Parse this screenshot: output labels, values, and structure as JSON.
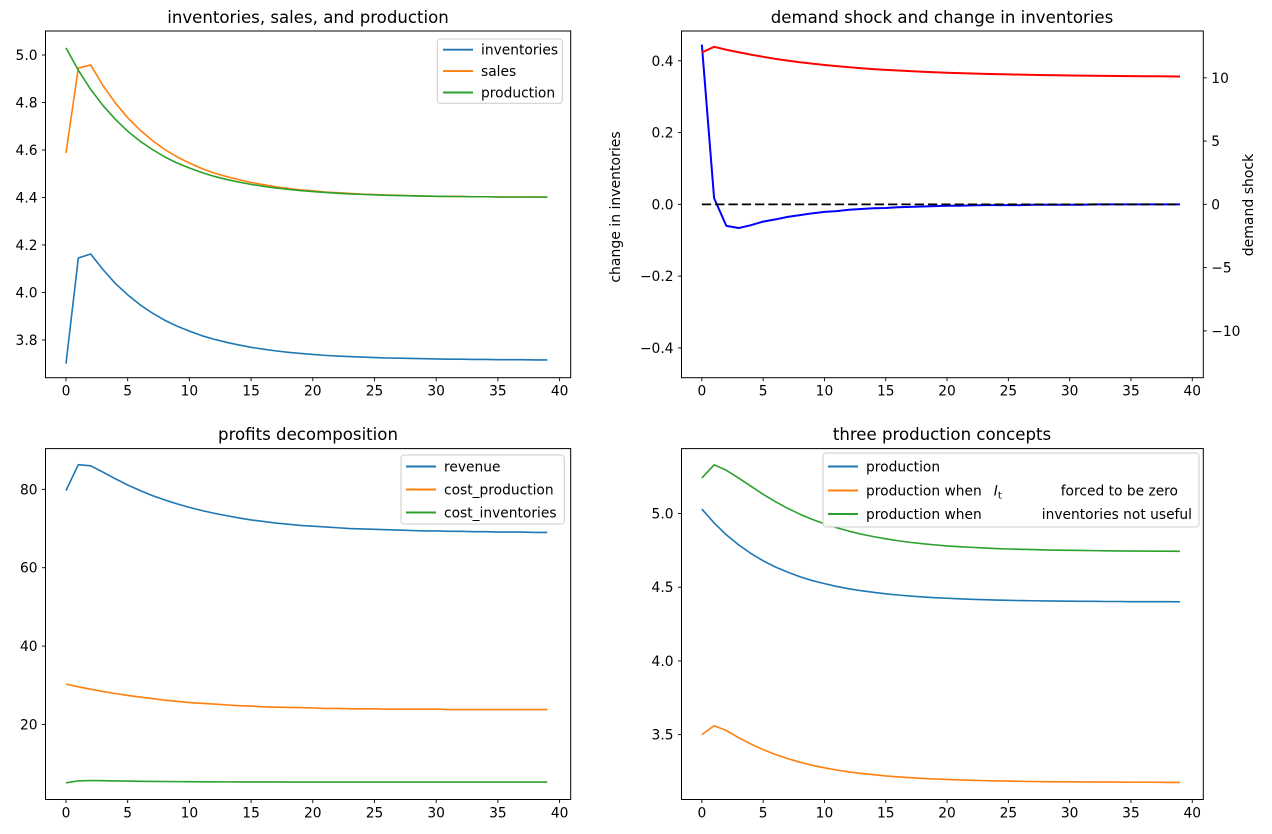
{
  "figure": {
    "background": "#ffffff",
    "colors": {
      "tab_blue": "#1f77b4",
      "tab_orange": "#ff7f0e",
      "tab_green": "#2ca02c",
      "pure_blue": "#0000ff",
      "pure_red": "#ff0000",
      "black": "#000000",
      "legend_edge": "#cccccc"
    }
  },
  "chart_data": [
    {
      "id": "inventories-sales-production",
      "type": "line",
      "title": "inventories, sales, and production",
      "xlim": [
        -1.66,
        40.9
      ],
      "xticks": [
        0,
        5,
        10,
        15,
        20,
        25,
        30,
        35,
        40
      ],
      "xticklabels": [
        "0",
        "5",
        "10",
        "15",
        "20",
        "25",
        "30",
        "35",
        "40"
      ],
      "ylim": [
        3.641,
        5.101
      ],
      "yticks": [
        3.8,
        4.0,
        4.2,
        4.4,
        4.6,
        4.8,
        5.0
      ],
      "yticklabels": [
        "3.8",
        "4.0",
        "4.2",
        "4.4",
        "4.6",
        "4.8",
        "5.0"
      ],
      "grid": false,
      "legend": {
        "position": "upper right",
        "items": [
          {
            "label": "inventories",
            "color": "#1f77b4"
          },
          {
            "label": "sales",
            "color": "#ff7f0e"
          },
          {
            "label": "production",
            "color": "#2ca02c"
          }
        ]
      },
      "series": [
        {
          "name": "inventories",
          "color": "#1f77b4",
          "width": 1.6,
          "values": [
            3.7,
            4.145,
            4.162,
            4.096,
            4.038,
            3.99,
            3.948,
            3.913,
            3.883,
            3.858,
            3.837,
            3.818,
            3.803,
            3.79,
            3.779,
            3.769,
            3.761,
            3.754,
            3.748,
            3.743,
            3.739,
            3.735,
            3.732,
            3.73,
            3.728,
            3.726,
            3.724,
            3.723,
            3.722,
            3.721,
            3.72,
            3.719,
            3.719,
            3.718,
            3.718,
            3.717,
            3.717,
            3.717,
            3.716,
            3.716
          ]
        },
        {
          "name": "sales",
          "color": "#ff7f0e",
          "width": 1.6,
          "values": [
            4.587,
            4.945,
            4.958,
            4.871,
            4.798,
            4.736,
            4.684,
            4.64,
            4.602,
            4.571,
            4.545,
            4.522,
            4.503,
            4.488,
            4.475,
            4.463,
            4.454,
            4.445,
            4.438,
            4.432,
            4.428,
            4.423,
            4.42,
            4.417,
            4.414,
            4.412,
            4.41,
            4.409,
            4.407,
            4.406,
            4.405,
            4.405,
            4.404,
            4.403,
            4.403,
            4.402,
            4.402,
            4.402,
            4.402,
            4.401
          ]
        },
        {
          "name": "production",
          "color": "#2ca02c",
          "width": 1.6,
          "values": [
            5.03,
            4.936,
            4.855,
            4.787,
            4.729,
            4.679,
            4.637,
            4.602,
            4.571,
            4.545,
            4.524,
            4.505,
            4.489,
            4.476,
            4.465,
            4.455,
            4.447,
            4.44,
            4.434,
            4.429,
            4.425,
            4.421,
            4.418,
            4.415,
            4.413,
            4.411,
            4.409,
            4.408,
            4.407,
            4.406,
            4.405,
            4.404,
            4.404,
            4.403,
            4.403,
            4.402,
            4.402,
            4.402,
            4.402,
            4.401
          ]
        }
      ]
    },
    {
      "id": "demand-shock-and-change-in-inventories",
      "type": "line",
      "title": "demand shock and change in inventories",
      "ylabel_left": "change in inventories",
      "ylabel_left_color": "#0000ff",
      "ylabel_right": "demand shock",
      "ylabel_right_color": "#ff0000",
      "xlim": [
        -1.66,
        40.9
      ],
      "xticks": [
        0,
        5,
        10,
        15,
        20,
        25,
        30,
        35,
        40
      ],
      "xticklabels": [
        "0",
        "5",
        "10",
        "15",
        "20",
        "25",
        "30",
        "35",
        "40"
      ],
      "ylim": [
        -0.483,
        0.483
      ],
      "yticks": [
        -0.4,
        -0.2,
        0.0,
        0.2,
        0.4
      ],
      "yticklabels": [
        "−0.4",
        "−0.2",
        "0.0",
        "0.2",
        "0.4"
      ],
      "y2lim": [
        -13.7,
        13.7
      ],
      "y2ticks": [
        -10,
        -5,
        0,
        5,
        10
      ],
      "y2ticklabels": [
        "−10",
        "−5",
        "0",
        "5",
        "10"
      ],
      "grid": false,
      "series": [
        {
          "name": "change in inventories",
          "color": "#0000ff",
          "width": 2,
          "values": [
            0.445,
            0.017,
            -0.06,
            -0.066,
            -0.058,
            -0.048,
            -0.042,
            -0.035,
            -0.03,
            -0.025,
            -0.021,
            -0.019,
            -0.015,
            -0.013,
            -0.011,
            -0.01,
            -0.008,
            -0.007,
            -0.006,
            -0.005,
            -0.004,
            -0.004,
            -0.003,
            -0.002,
            -0.002,
            -0.002,
            -0.002,
            -0.001,
            -0.001,
            -0.001,
            -0.001,
            -0.001,
            0.0,
            0.0,
            0.0,
            0.0,
            0.0,
            0.0,
            0.0,
            0.0
          ]
        },
        {
          "name": "zero line",
          "color": "#000000",
          "width": 1.8,
          "dash": true,
          "values": [
            0,
            0,
            0,
            0,
            0,
            0,
            0,
            0,
            0,
            0,
            0,
            0,
            0,
            0,
            0,
            0,
            0,
            0,
            0,
            0,
            0,
            0,
            0,
            0,
            0,
            0,
            0,
            0,
            0,
            0,
            0,
            0,
            0,
            0,
            0,
            0,
            0,
            0,
            0,
            0
          ]
        },
        {
          "name": "demand shock",
          "color": "#ff0000",
          "width": 2,
          "axis": "right",
          "values": [
            12.0,
            12.45,
            12.22,
            12.02,
            11.83,
            11.66,
            11.5,
            11.36,
            11.23,
            11.12,
            11.01,
            10.92,
            10.84,
            10.76,
            10.69,
            10.63,
            10.58,
            10.53,
            10.48,
            10.44,
            10.4,
            10.37,
            10.34,
            10.31,
            10.29,
            10.27,
            10.25,
            10.23,
            10.21,
            10.2,
            10.18,
            10.17,
            10.16,
            10.15,
            10.14,
            10.13,
            10.12,
            10.12,
            10.11,
            10.1
          ]
        }
      ]
    },
    {
      "id": "profits-decomposition",
      "type": "line",
      "title": "profits decomposition",
      "xlim": [
        -1.66,
        40.9
      ],
      "xticks": [
        0,
        5,
        10,
        15,
        20,
        25,
        30,
        35,
        40
      ],
      "xticklabels": [
        "0",
        "5",
        "10",
        "15",
        "20",
        "25",
        "30",
        "35",
        "40"
      ],
      "ylim": [
        0.85,
        90.4
      ],
      "yticks": [
        20,
        40,
        60,
        80
      ],
      "yticklabels": [
        "20",
        "40",
        "60",
        "80"
      ],
      "grid": false,
      "legend": {
        "position": "upper right",
        "items": [
          {
            "label": "revenue",
            "color": "#1f77b4"
          },
          {
            "label": "cost_production",
            "color": "#ff7f0e"
          },
          {
            "label": "cost_inventories",
            "color": "#2ca02c"
          }
        ]
      },
      "series": [
        {
          "name": "revenue",
          "color": "#1f77b4",
          "width": 1.6,
          "values": [
            79.7,
            86.3,
            86.0,
            84.4,
            82.7,
            81.1,
            79.7,
            78.4,
            77.3,
            76.3,
            75.4,
            74.6,
            73.9,
            73.3,
            72.7,
            72.2,
            71.8,
            71.4,
            71.1,
            70.8,
            70.6,
            70.4,
            70.2,
            70.0,
            69.9,
            69.8,
            69.7,
            69.6,
            69.5,
            69.4,
            69.4,
            69.3,
            69.3,
            69.2,
            69.2,
            69.1,
            69.1,
            69.1,
            69.0,
            69.0
          ]
        },
        {
          "name": "cost_production",
          "color": "#ff7f0e",
          "width": 1.6,
          "values": [
            30.3,
            29.6,
            29.0,
            28.4,
            27.9,
            27.4,
            27.0,
            26.6,
            26.2,
            25.9,
            25.6,
            25.4,
            25.2,
            25.0,
            24.8,
            24.7,
            24.5,
            24.4,
            24.35,
            24.3,
            24.2,
            24.1,
            24.1,
            24.0,
            24.0,
            24.0,
            23.9,
            23.9,
            23.9,
            23.9,
            23.9,
            23.8,
            23.8,
            23.8,
            23.8,
            23.8,
            23.8,
            23.8,
            23.8,
            23.8
          ]
        },
        {
          "name": "cost_inventories",
          "color": "#2ca02c",
          "width": 1.6,
          "values": [
            5.1,
            5.6,
            5.7,
            5.65,
            5.6,
            5.55,
            5.5,
            5.47,
            5.44,
            5.41,
            5.39,
            5.37,
            5.36,
            5.35,
            5.34,
            5.33,
            5.32,
            5.32,
            5.31,
            5.31,
            5.31,
            5.3,
            5.3,
            5.3,
            5.3,
            5.3,
            5.3,
            5.3,
            5.3,
            5.3,
            5.3,
            5.3,
            5.3,
            5.3,
            5.3,
            5.3,
            5.3,
            5.3,
            5.3,
            5.3
          ]
        }
      ]
    },
    {
      "id": "three-production-concepts",
      "type": "line",
      "title": "three production concepts",
      "xlim": [
        -1.66,
        40.9
      ],
      "xticks": [
        0,
        5,
        10,
        15,
        20,
        25,
        30,
        35,
        40
      ],
      "xticklabels": [
        "0",
        "5",
        "10",
        "15",
        "20",
        "25",
        "30",
        "35",
        "40"
      ],
      "ylim": [
        3.06,
        5.44
      ],
      "yticks": [
        3.5,
        4.0,
        4.5,
        5.0
      ],
      "yticklabels": [
        "3.5",
        "4.0",
        "4.5",
        "5.0"
      ],
      "grid": false,
      "legend": {
        "position": "upper center",
        "items": [
          {
            "label": "production",
            "color": "#1f77b4"
          },
          {
            "label": "production when",
            "math": "I",
            "math_sub": "t",
            "tail": "forced to be zero",
            "color": "#ff7f0e"
          },
          {
            "label": "production when",
            "tail": "inventories not useful",
            "color": "#2ca02c"
          }
        ]
      },
      "series": [
        {
          "name": "production",
          "color": "#1f77b4",
          "width": 1.6,
          "values": [
            5.03,
            4.936,
            4.855,
            4.787,
            4.729,
            4.679,
            4.637,
            4.602,
            4.571,
            4.545,
            4.524,
            4.505,
            4.489,
            4.476,
            4.465,
            4.455,
            4.447,
            4.44,
            4.434,
            4.429,
            4.425,
            4.421,
            4.418,
            4.415,
            4.413,
            4.411,
            4.409,
            4.408,
            4.407,
            4.406,
            4.405,
            4.404,
            4.404,
            4.403,
            4.403,
            4.402,
            4.402,
            4.402,
            4.402,
            4.401
          ]
        },
        {
          "name": "production when It forced to be zero",
          "color": "#ff7f0e",
          "width": 1.6,
          "values": [
            3.5,
            3.56,
            3.528,
            3.479,
            3.436,
            3.398,
            3.365,
            3.337,
            3.313,
            3.292,
            3.275,
            3.26,
            3.247,
            3.237,
            3.228,
            3.22,
            3.214,
            3.208,
            3.203,
            3.199,
            3.196,
            3.193,
            3.19,
            3.188,
            3.186,
            3.185,
            3.183,
            3.182,
            3.181,
            3.18,
            3.18,
            3.179,
            3.179,
            3.178,
            3.178,
            3.177,
            3.177,
            3.177,
            3.176,
            3.176
          ]
        },
        {
          "name": "production when inventories not useful",
          "color": "#2ca02c",
          "width": 1.6,
          "values": [
            5.24,
            5.33,
            5.293,
            5.24,
            5.185,
            5.13,
            5.08,
            5.035,
            4.995,
            4.96,
            4.93,
            4.903,
            4.88,
            4.86,
            4.843,
            4.828,
            4.815,
            4.804,
            4.795,
            4.787,
            4.78,
            4.775,
            4.77,
            4.766,
            4.762,
            4.759,
            4.757,
            4.755,
            4.753,
            4.751,
            4.75,
            4.749,
            4.748,
            4.747,
            4.746,
            4.745,
            4.745,
            4.744,
            4.744,
            4.743
          ]
        }
      ]
    }
  ]
}
